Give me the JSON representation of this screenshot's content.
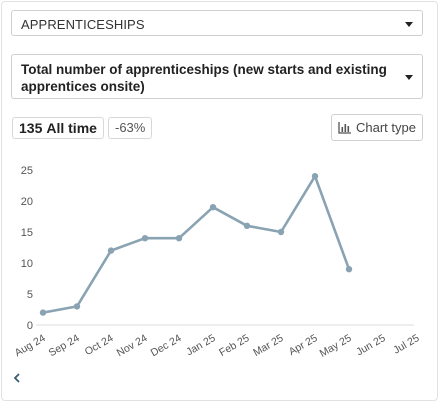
{
  "filters": {
    "category": "APPRENTICESHIPS",
    "measure": "Total number of apprenticeships (new starts and existing apprentices onsite)"
  },
  "stats": {
    "total_value": "135",
    "total_label": "All time",
    "change": "-63%"
  },
  "chart_type_button": "Chart type",
  "chart_data": {
    "type": "line",
    "categories": [
      "Aug 24",
      "Sep 24",
      "Oct 24",
      "Nov 24",
      "Dec 24",
      "Jan 25",
      "Feb 25",
      "Mar 25",
      "Apr 25",
      "May 25",
      "Jun 25",
      "Jul 25"
    ],
    "values": [
      2,
      3,
      12,
      14,
      14,
      19,
      16,
      15,
      24,
      9,
      null,
      null
    ],
    "yticks": [
      0,
      5,
      10,
      15,
      20,
      25
    ],
    "ylim": [
      0,
      25
    ],
    "title": "",
    "xlabel": "",
    "ylabel": "",
    "grid": false,
    "line_color": "#8aa3b2"
  }
}
